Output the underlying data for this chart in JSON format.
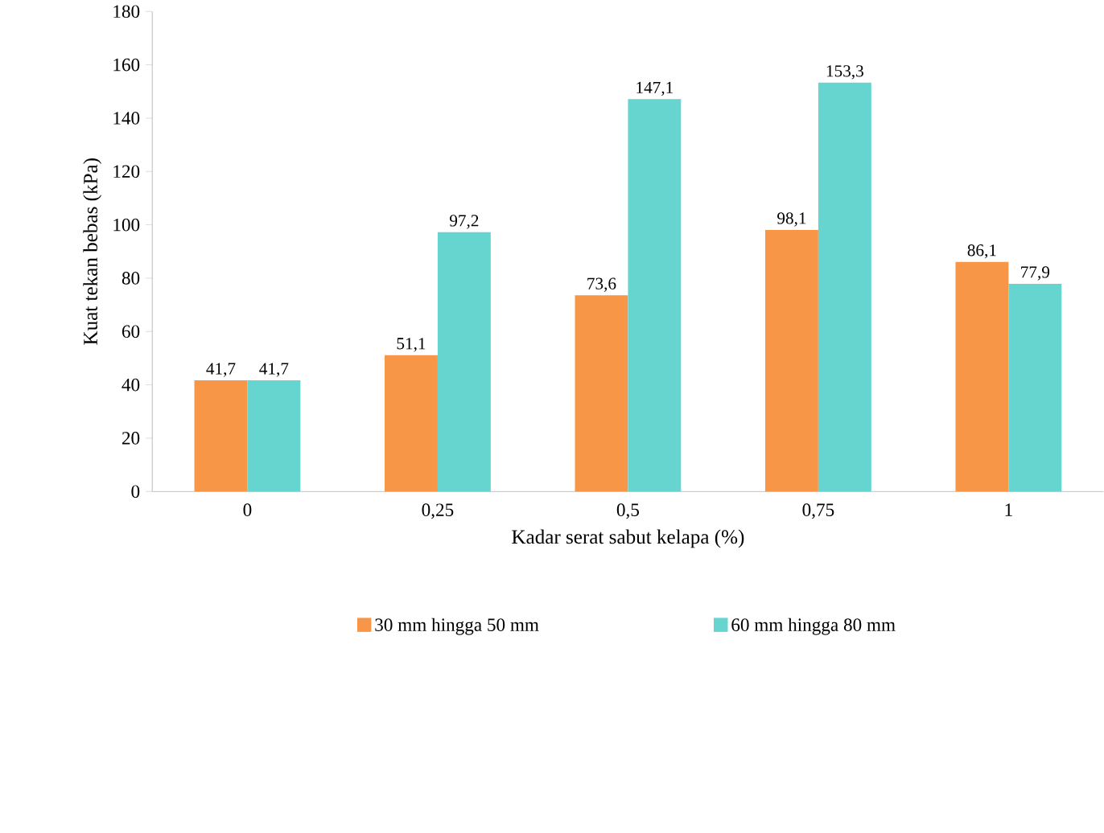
{
  "chart_data": {
    "type": "bar",
    "xlabel": "Kadar serat sabut kelapa (%)",
    "ylabel": "Kuat tekan bebas (kPa)",
    "categories": [
      "0",
      "0,25",
      "0,5",
      "0,75",
      "1"
    ],
    "series": [
      {
        "name": "30 mm hingga 50 mm",
        "color": "#f79646",
        "values": [
          41.7,
          51.1,
          73.6,
          98.1,
          86.1
        ],
        "value_labels": [
          "41,7",
          "51,1",
          "73,6",
          "98,1",
          "86,1"
        ]
      },
      {
        "name": "60 mm hingga 80 mm",
        "color": "#66d5d0",
        "values": [
          41.7,
          97.2,
          147.1,
          153.3,
          77.9
        ],
        "value_labels": [
          "41,7",
          "97,2",
          "147,1",
          "153,3",
          "77,9"
        ]
      }
    ],
    "ylim": [
      0,
      180
    ],
    "yticks": [
      0,
      20,
      40,
      60,
      80,
      100,
      120,
      140,
      160,
      180
    ],
    "grid": false,
    "legend": "bottom"
  }
}
